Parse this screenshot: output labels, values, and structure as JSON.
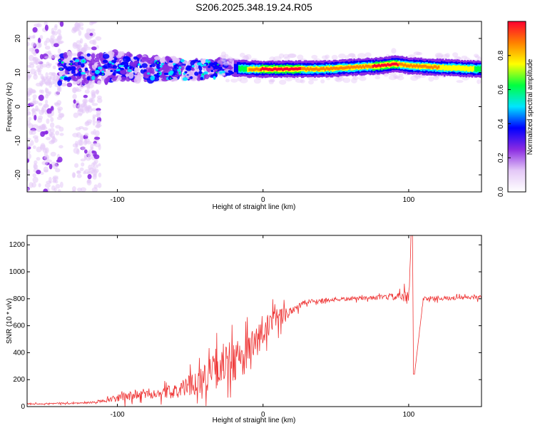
{
  "figure_title": "S206.2025.348.19.24.R05",
  "chart_data": [
    {
      "type": "heatmap",
      "title": "S206.2025.348.19.24.R05",
      "xlabel": "Height of straight line (km)",
      "ylabel": "Frequency (Hz)",
      "xlim": [
        -162,
        150
      ],
      "ylim": [
        -25,
        25
      ],
      "x_ticks": [
        -100,
        0,
        100
      ],
      "x_tick_labels": [
        "-100",
        "0",
        "100"
      ],
      "y_ticks": [
        -20,
        -10,
        0,
        10,
        20
      ],
      "y_tick_labels": [
        "-20",
        "-10",
        "0",
        "10",
        "20"
      ],
      "grid": false,
      "colorbar": {
        "label": "Normalized spectral amplitude",
        "range": [
          0,
          1
        ],
        "ticks": [
          0.0,
          0.2,
          0.4,
          0.6,
          0.8
        ],
        "tick_labels": [
          "0.0",
          "0.2",
          "0.4",
          "0.6",
          "0.8"
        ],
        "colormap": [
          "#ffffff",
          "#e4c8f7",
          "#8a2be2",
          "#0000ff",
          "#00e5ff",
          "#00ff40",
          "#ffff00",
          "#ff8000",
          "#ff0030"
        ]
      },
      "ridge": {
        "description": "dominant frequency band",
        "x": [
          -112,
          -100,
          -80,
          -60,
          -40,
          -25,
          -10,
          0,
          20,
          40,
          60,
          80,
          90,
          100,
          120,
          150
        ],
        "frequency": [
          11,
          12,
          11,
          11,
          11,
          11.5,
          11,
          11,
          11,
          11,
          11.5,
          12,
          12.5,
          12,
          11.5,
          11
        ],
        "peak_amplitude": [
          0.3,
          0.35,
          0.4,
          0.45,
          0.4,
          0.55,
          0.9,
          0.95,
          0.95,
          0.9,
          0.9,
          0.95,
          0.95,
          0.9,
          0.9,
          0.85
        ]
      },
      "scatter_regions": [
        {
          "x": [
            -162,
            -108
          ],
          "frequency": [
            -25,
            25
          ],
          "amplitude": "low"
        },
        {
          "x": [
            -108,
            -25
          ],
          "frequency": [
            2,
            17
          ],
          "amplitude": "low-medium"
        }
      ]
    },
    {
      "type": "line",
      "title": "",
      "xlabel": "Height of straight line (km)",
      "ylabel": "SNR (10 * v/v)",
      "xlim": [
        -162,
        150
      ],
      "ylim": [
        0,
        1270
      ],
      "x_ticks": [
        -100,
        0,
        100
      ],
      "x_tick_labels": [
        "-100",
        "0",
        "100"
      ],
      "y_ticks": [
        0,
        200,
        400,
        600,
        800,
        1000,
        1200
      ],
      "y_tick_labels": [
        "0",
        "200",
        "400",
        "600",
        "800",
        "1000",
        "1200"
      ],
      "grid": false,
      "series": [
        {
          "name": "SNR",
          "color": "#ee3333",
          "x": [
            -162,
            -150,
            -130,
            -120,
            -110,
            -100,
            -90,
            -80,
            -70,
            -60,
            -50,
            -40,
            -30,
            -20,
            -10,
            0,
            10,
            20,
            30,
            40,
            60,
            80,
            95,
            100,
            102,
            104,
            110,
            130,
            150
          ],
          "y": [
            20,
            22,
            25,
            28,
            40,
            60,
            80,
            95,
            100,
            110,
            160,
            220,
            280,
            330,
            400,
            540,
            650,
            720,
            775,
            790,
            800,
            810,
            815,
            800,
            1270,
            240,
            800,
            805,
            810
          ],
          "noise_amplitude": [
            5,
            5,
            6,
            6,
            10,
            30,
            40,
            40,
            40,
            50,
            80,
            110,
            140,
            150,
            140,
            110,
            80,
            40,
            20,
            15,
            15,
            15,
            30,
            80,
            0,
            0,
            15,
            15,
            15
          ]
        }
      ]
    }
  ]
}
